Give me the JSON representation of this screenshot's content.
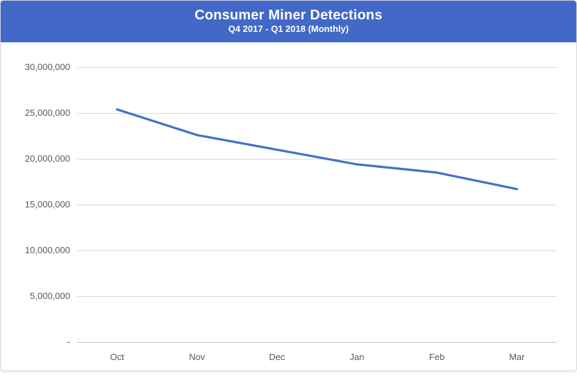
{
  "header": {
    "title": "Consumer Miner Detections",
    "subtitle": "Q4 2017 - Q1 2018 (Monthly)",
    "background_color": "#4269C8",
    "text_color": "#FFFFFF"
  },
  "chart_data": {
    "type": "line",
    "title": "Consumer Miner Detections",
    "subtitle": "Q4 2017 - Q1 2018 (Monthly)",
    "categories": [
      "Oct",
      "Nov",
      "Dec",
      "Jan",
      "Feb",
      "Mar"
    ],
    "series": [
      {
        "name": "Consumer Miner Detections",
        "values": [
          25400000,
          22600000,
          21000000,
          19400000,
          18500000,
          16700000
        ]
      }
    ],
    "xlabel": "",
    "ylabel": "",
    "ylim": [
      0,
      30000000
    ],
    "ytick_values": [
      0,
      5000000,
      10000000,
      15000000,
      20000000,
      25000000,
      30000000
    ],
    "ytick_labels": [
      "-",
      "5,000,000",
      "10,000,000",
      "15,000,000",
      "20,000,000",
      "25,000,000",
      "30,000,000"
    ],
    "grid": true,
    "legend_position": "none",
    "line_color": "#4472C4",
    "gridline_color": "#D9D9D9",
    "axis_line_color": "#C3C3C3",
    "tick_label_color": "#595959"
  }
}
